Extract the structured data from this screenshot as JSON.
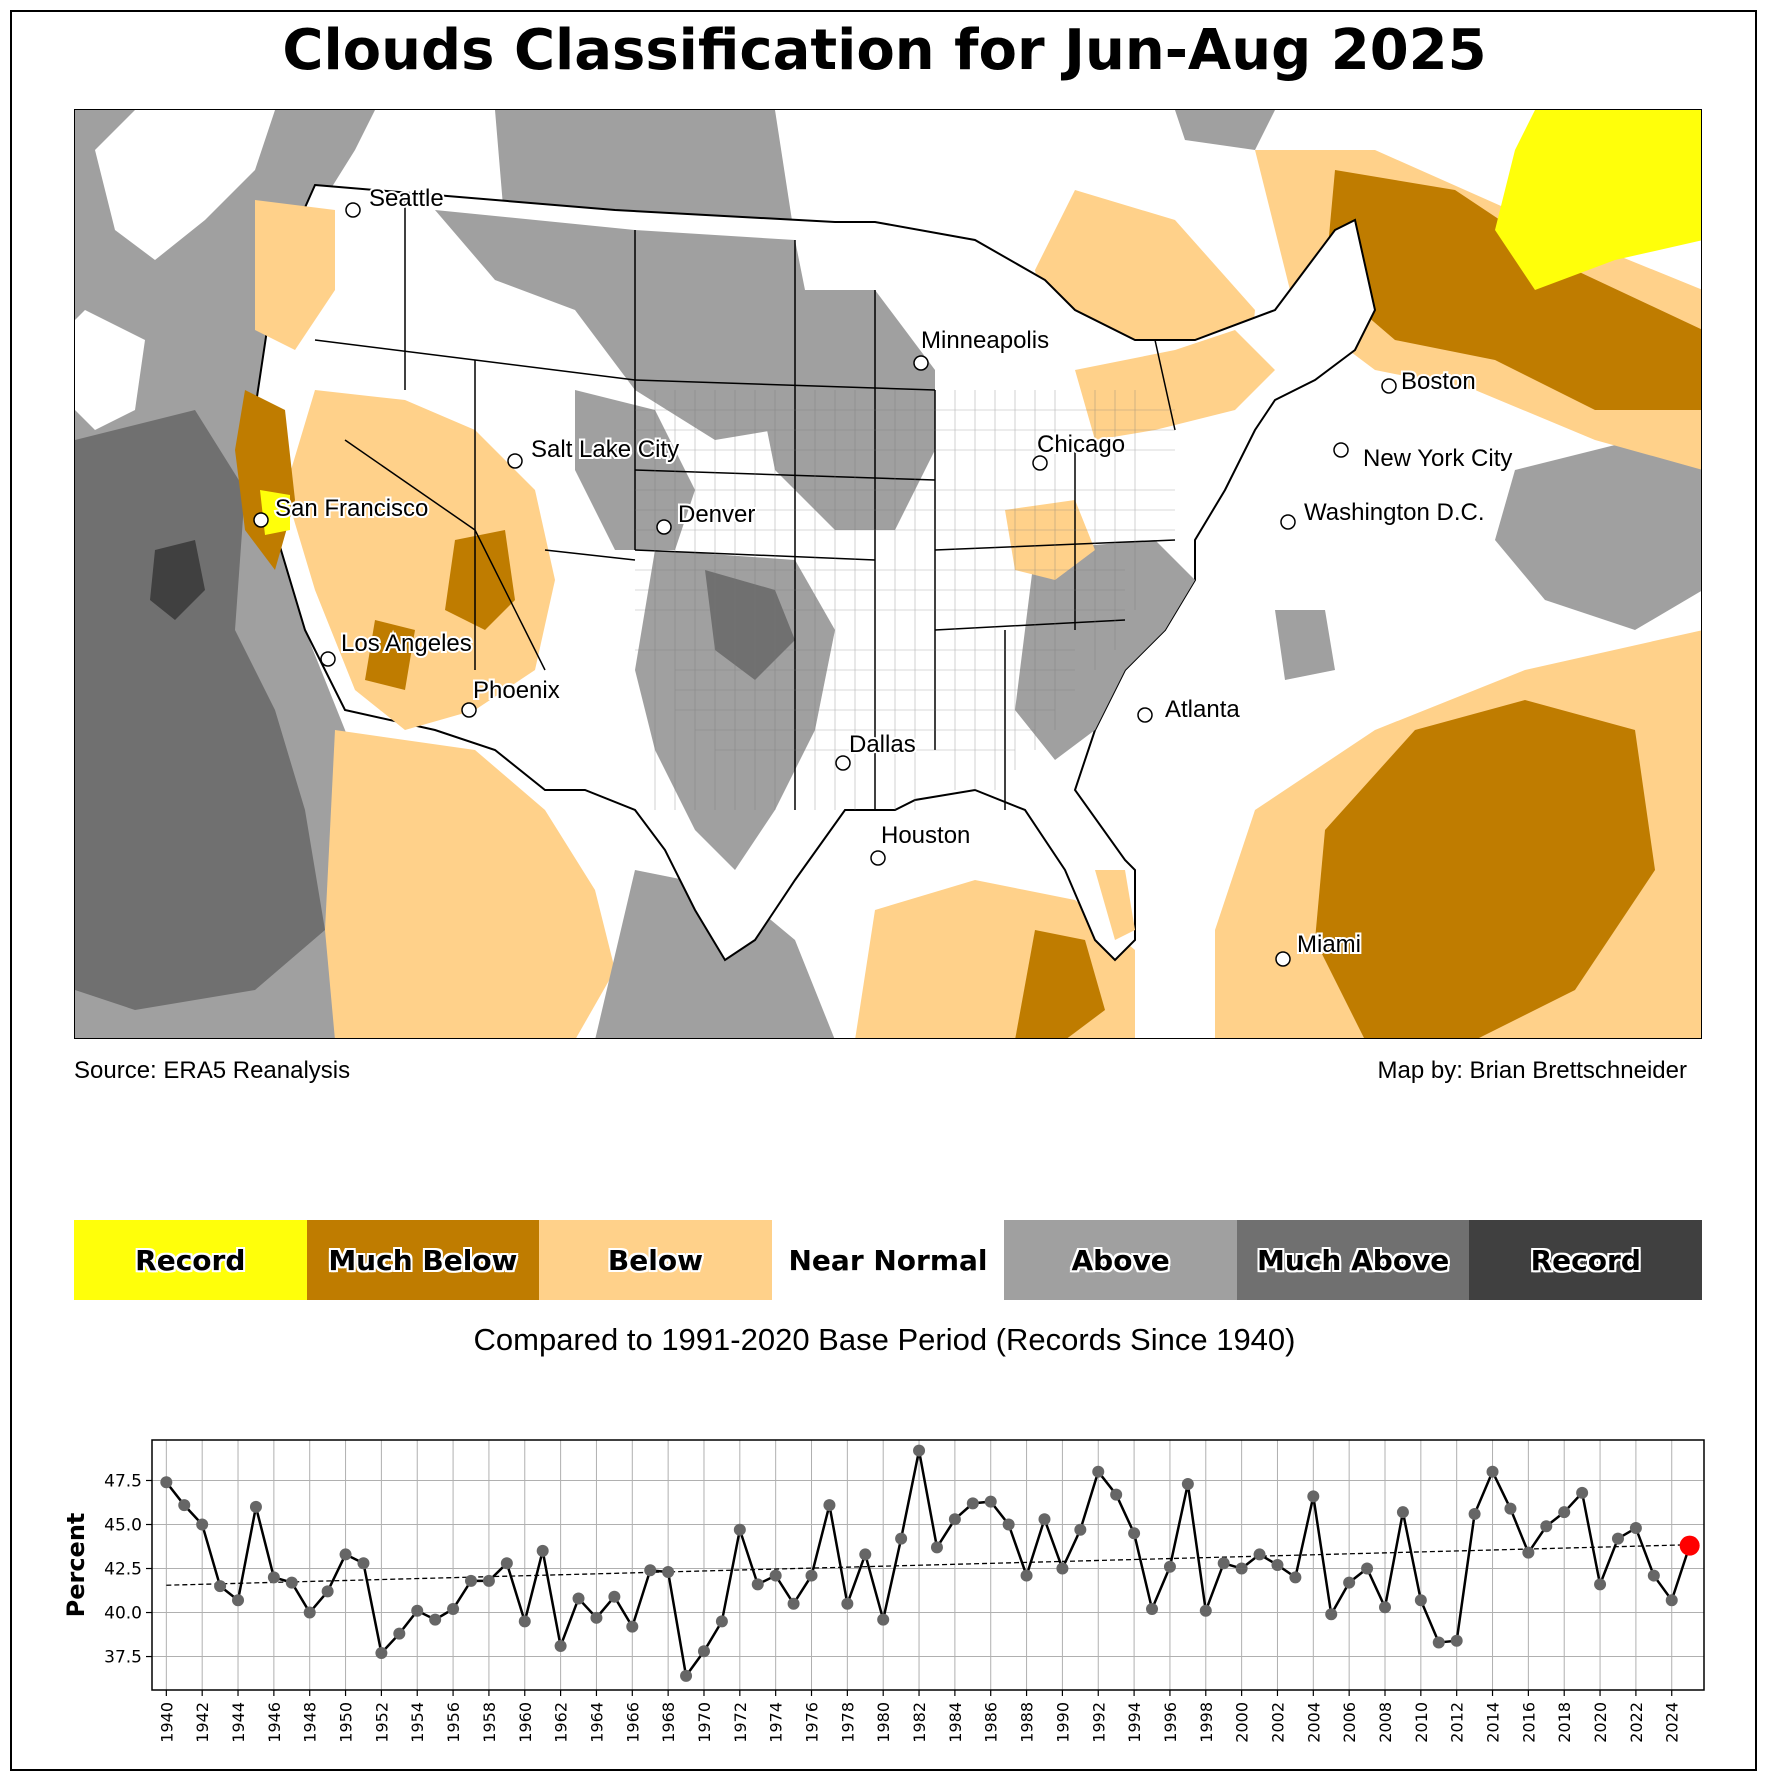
{
  "title": "Clouds Classification for Jun-Aug 2025",
  "source": "Source: ERA5 Reanalysis",
  "credit": "Map by: Brian Brettschneider",
  "compared": "Compared to 1991-2020 Base Period   (Records Since 1940)",
  "colors": {
    "record_below": "#ffff0a",
    "much_below": "#bf7c00",
    "below": "#ffd18a",
    "near_normal": "#ffffff",
    "above": "#a0a0a0",
    "much_above": "#707070",
    "record_above": "#404040",
    "line": "#000000",
    "marker": "#666666",
    "latest_marker": "#ff0000"
  },
  "legend": [
    {
      "label": "Record",
      "color": "#ffff0a"
    },
    {
      "label": "Much Below",
      "color": "#bf7c00"
    },
    {
      "label": "Below",
      "color": "#ffd18a"
    },
    {
      "label": "Near Normal",
      "color": "#ffffff"
    },
    {
      "label": "Above",
      "color": "#a0a0a0"
    },
    {
      "label": "Much Above",
      "color": "#707070"
    },
    {
      "label": "Record",
      "color": "#404040"
    }
  ],
  "cities": [
    {
      "name": "Seattle"
    },
    {
      "name": "San Francisco"
    },
    {
      "name": "Los Angeles"
    },
    {
      "name": "Phoenix"
    },
    {
      "name": "Salt Lake City"
    },
    {
      "name": "Denver"
    },
    {
      "name": "Dallas"
    },
    {
      "name": "Houston"
    },
    {
      "name": "Minneapolis"
    },
    {
      "name": "Chicago"
    },
    {
      "name": "Atlanta"
    },
    {
      "name": "Miami"
    },
    {
      "name": "Washington D.C."
    },
    {
      "name": "New York City"
    },
    {
      "name": "Boston"
    }
  ],
  "chart_data": {
    "type": "line",
    "title": "",
    "xlabel": "",
    "ylabel": "Percent",
    "ylim": [
      35.6,
      49.8
    ],
    "xlim": [
      1939.2,
      2025.8
    ],
    "grid": true,
    "yticks": [
      "37.5",
      "40.0",
      "42.5",
      "45.0",
      "47.5"
    ],
    "xticks": [
      "1940",
      "1942",
      "1944",
      "1946",
      "1948",
      "1950",
      "1952",
      "1954",
      "1956",
      "1958",
      "1960",
      "1962",
      "1964",
      "1966",
      "1968",
      "1970",
      "1972",
      "1974",
      "1976",
      "1978",
      "1980",
      "1982",
      "1984",
      "1986",
      "1988",
      "1990",
      "1992",
      "1994",
      "1996",
      "1998",
      "2000",
      "2002",
      "2004",
      "2006",
      "2008",
      "2010",
      "2012",
      "2014",
      "2016",
      "2018",
      "2020",
      "2022",
      "2024"
    ],
    "x": [
      1940,
      1941,
      1942,
      1943,
      1944,
      1945,
      1946,
      1947,
      1948,
      1949,
      1950,
      1951,
      1952,
      1953,
      1954,
      1955,
      1956,
      1957,
      1958,
      1959,
      1960,
      1961,
      1962,
      1963,
      1964,
      1965,
      1966,
      1967,
      1968,
      1969,
      1970,
      1971,
      1972,
      1973,
      1974,
      1975,
      1976,
      1977,
      1978,
      1979,
      1980,
      1981,
      1982,
      1983,
      1984,
      1985,
      1986,
      1987,
      1988,
      1989,
      1990,
      1991,
      1992,
      1993,
      1994,
      1995,
      1996,
      1997,
      1998,
      1999,
      2000,
      2001,
      2002,
      2003,
      2004,
      2005,
      2006,
      2007,
      2008,
      2009,
      2010,
      2011,
      2012,
      2013,
      2014,
      2015,
      2016,
      2017,
      2018,
      2019,
      2020,
      2021,
      2022,
      2023,
      2024,
      2025
    ],
    "series": [
      {
        "values": [
          47.4,
          46.1,
          45.0,
          41.5,
          40.7,
          46.0,
          42.0,
          41.7,
          40.0,
          41.2,
          43.3,
          42.8,
          37.7,
          38.8,
          40.1,
          39.6,
          40.2,
          41.8,
          41.8,
          42.8,
          39.5,
          43.5,
          38.1,
          40.8,
          39.7,
          40.9,
          39.2,
          42.4,
          42.3,
          36.4,
          37.8,
          39.5,
          44.7,
          41.6,
          42.1,
          40.5,
          42.1,
          46.1,
          40.5,
          43.3,
          39.6,
          44.2,
          49.2,
          43.7,
          45.3,
          46.2,
          46.3,
          45.0,
          42.1,
          45.3,
          42.5,
          44.7,
          48.0,
          46.7,
          44.5,
          40.2,
          42.6,
          47.3,
          40.1,
          42.8,
          42.5,
          43.3,
          42.7,
          42.0,
          46.6,
          39.9,
          41.7,
          42.5,
          40.3,
          45.7,
          40.7,
          38.3,
          38.4,
          45.6,
          48.0,
          45.9,
          43.4,
          44.9,
          45.7,
          46.8,
          41.6,
          44.2,
          44.8,
          42.1,
          40.7,
          43.8
        ]
      }
    ],
    "trend": {
      "start": 41.55,
      "end": 43.85
    },
    "latest": {
      "x": 2025,
      "y": 43.8
    }
  }
}
